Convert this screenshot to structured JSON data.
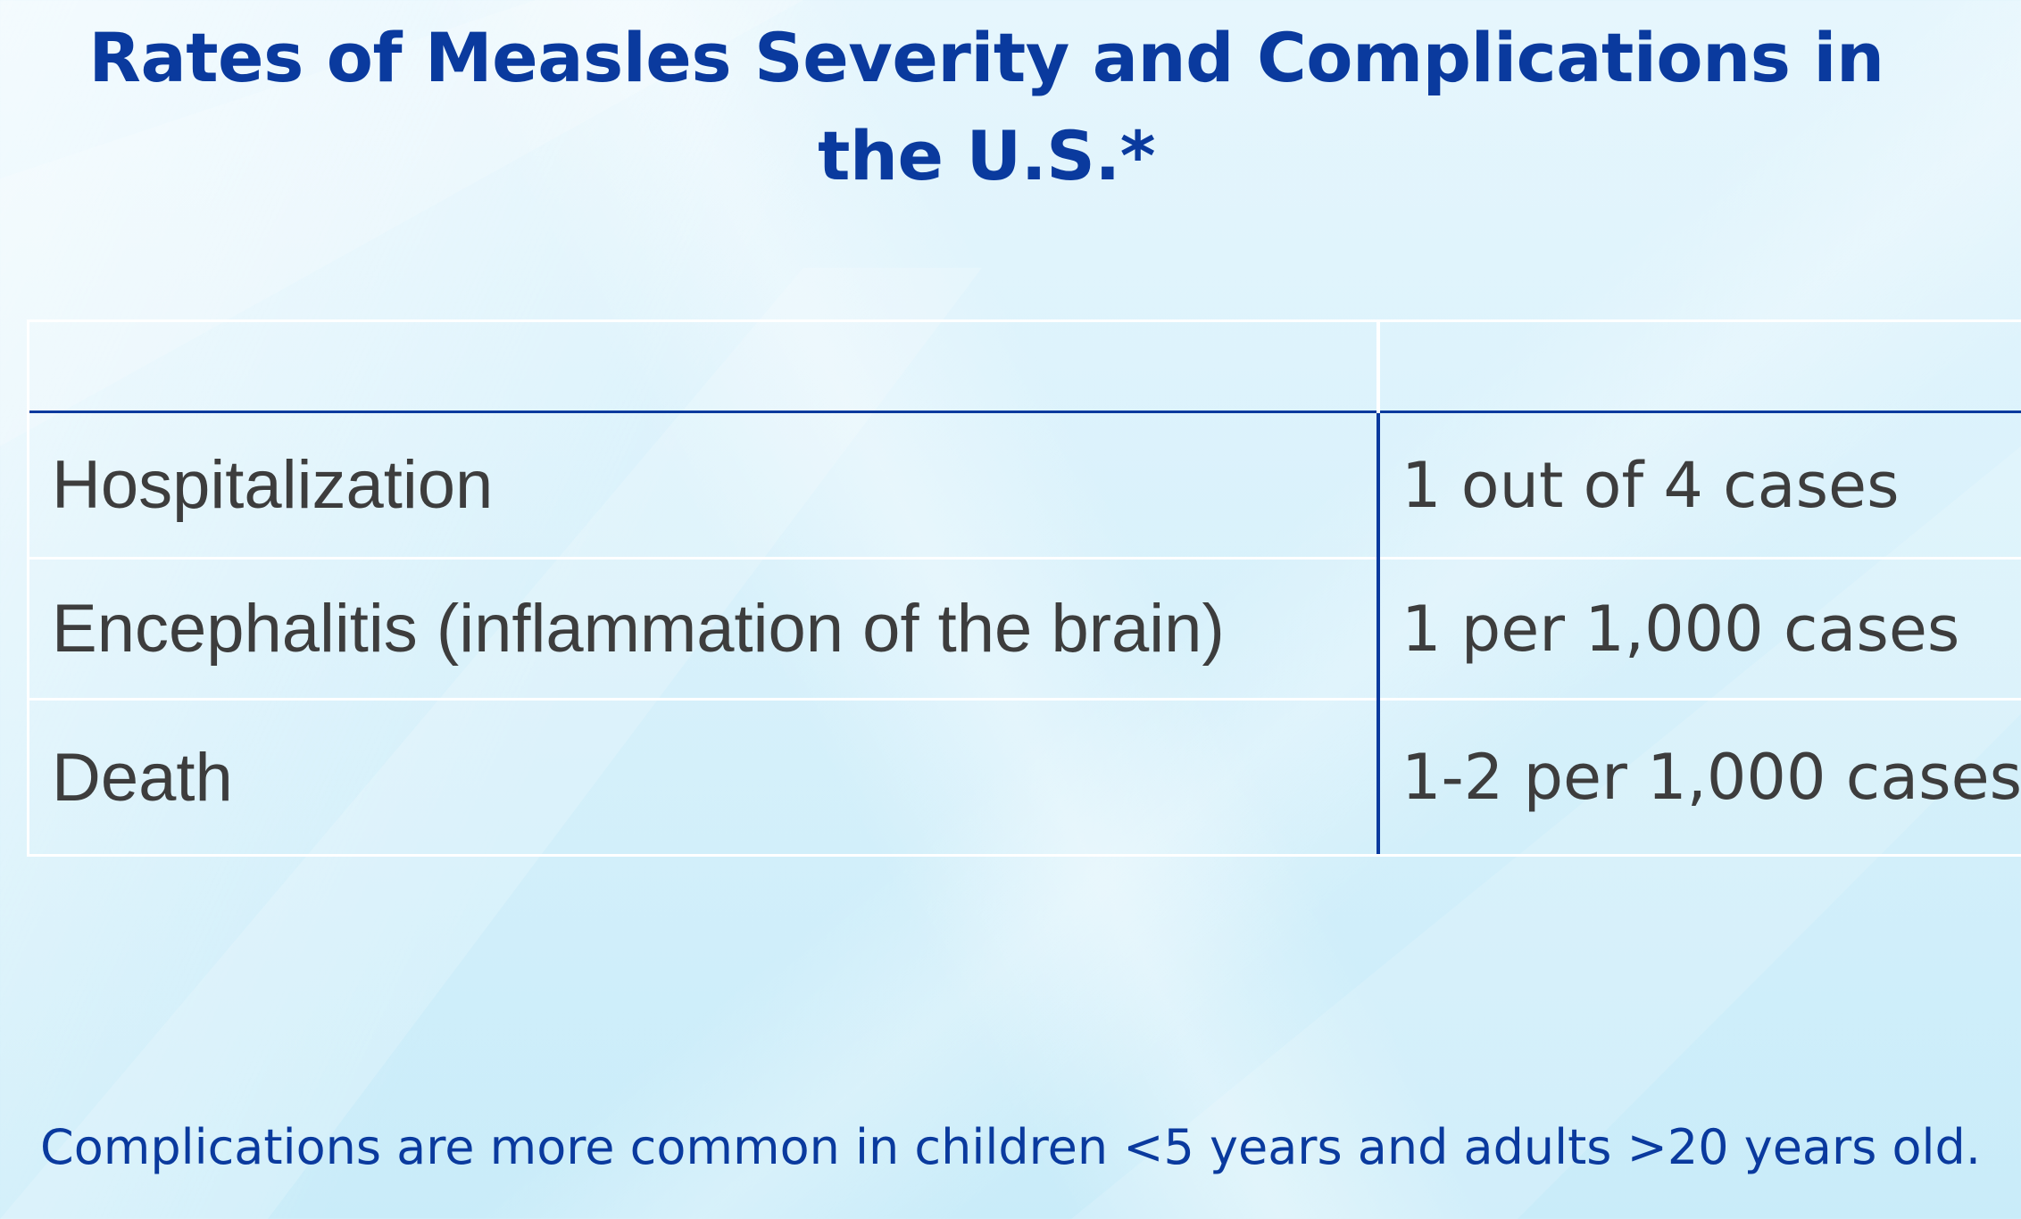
{
  "slide": {
    "title": "Rates of Measles Severity and Complications in the U.S.*",
    "table": {
      "header": [
        "",
        ""
      ],
      "rows": [
        {
          "complication": "Hospitalization",
          "rate": "1 out of 4 cases"
        },
        {
          "complication": "Encephalitis (inflammation of the brain)",
          "rate": "1 per 1,000 cases"
        },
        {
          "complication": "Death",
          "rate": "1-2 per 1,000 cases"
        }
      ]
    },
    "footnote": "Complications are more common in children <5 years and adults >20 years old."
  },
  "colors": {
    "title": "#0a3a9e",
    "text": "#3d3d3d",
    "rule": "#0a3a9e",
    "background": "#dff3fb"
  }
}
